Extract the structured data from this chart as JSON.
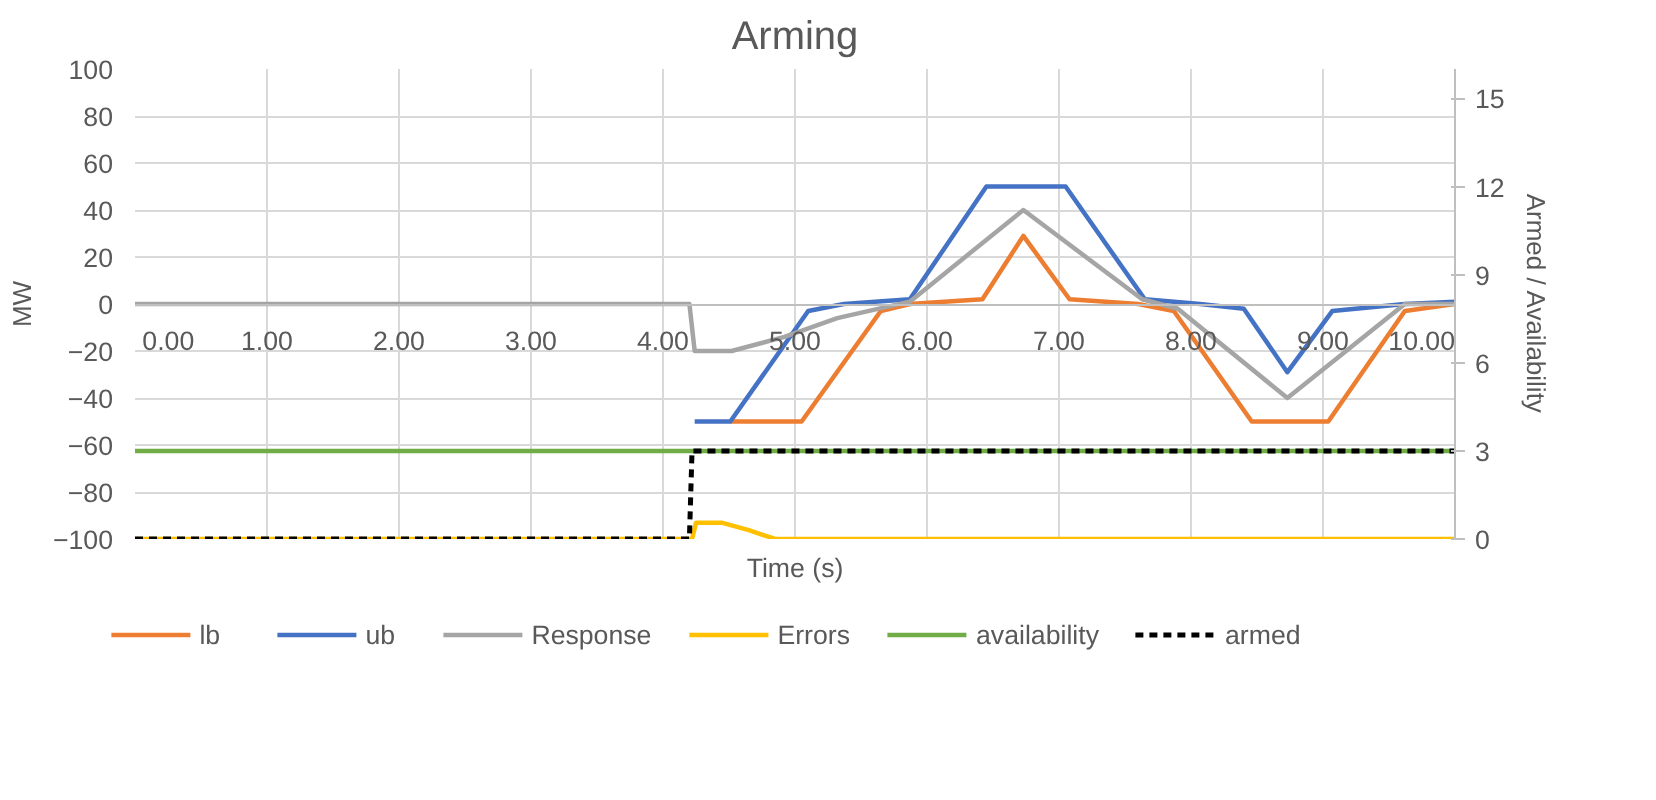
{
  "chart_data": {
    "type": "line",
    "title": "Arming",
    "xlabel": "Time (s)",
    "ylabel": "MW",
    "y2label": "Armed / Availability",
    "xlim": [
      0,
      10
    ],
    "xticks": [
      {
        "value": 0,
        "label": "0.00"
      },
      {
        "value": 1,
        "label": "1.00"
      },
      {
        "value": 2,
        "label": "2.00"
      },
      {
        "value": 3,
        "label": "3.00"
      },
      {
        "value": 4,
        "label": "4.00"
      },
      {
        "value": 5,
        "label": "5.00"
      },
      {
        "value": 6,
        "label": "6.00"
      },
      {
        "value": 7,
        "label": "7.00"
      },
      {
        "value": 8,
        "label": "8.00"
      },
      {
        "value": 9,
        "label": "9.00"
      },
      {
        "value": 10,
        "label": "10.00"
      }
    ],
    "ylim": [
      -100,
      100
    ],
    "yticks": [
      -100,
      -80,
      -60,
      -40,
      -20,
      0,
      20,
      40,
      60,
      80,
      100
    ],
    "y2lim": [
      0,
      16
    ],
    "y2ticks": [
      0,
      3,
      6,
      9,
      12,
      15
    ],
    "grid": true,
    "legend": "bottom",
    "marker": "none",
    "series": [
      {
        "name": "lb",
        "color": "#ed7d31",
        "x": [
          4.51,
          5.05,
          5.65,
          5.87,
          6.42,
          6.73,
          7.08,
          7.6,
          7.87,
          8.46,
          9.04,
          9.62,
          10
        ],
        "values": [
          -50,
          -50,
          -3,
          0,
          2,
          29,
          2,
          0,
          -3,
          -50,
          -50,
          -3,
          0
        ]
      },
      {
        "name": "ub",
        "color": "#4472c4",
        "x": [
          4.24,
          4.51,
          5.1,
          5.37,
          5.87,
          6.45,
          7.05,
          7.65,
          8.07,
          8.4,
          8.73,
          9.07,
          9.62,
          10
        ],
        "values": [
          -50,
          -50,
          -3,
          0,
          2,
          50,
          50,
          2,
          0,
          -2,
          -29,
          -3,
          0,
          1
        ]
      },
      {
        "name": "Response",
        "color": "#a5a5a5",
        "x": [
          0,
          4.2,
          4.24,
          4.52,
          4.92,
          5.32,
          5.87,
          6.73,
          7.63,
          7.9,
          8.73,
          9.62,
          10
        ],
        "values": [
          0,
          0,
          -20,
          -20,
          -14,
          -6,
          1,
          40,
          2,
          -2,
          -40,
          0,
          0
        ]
      },
      {
        "name": "Errors",
        "color": "#ffc000",
        "axis": "y2",
        "x": [
          0,
          4.22,
          4.25,
          4.45,
          4.65,
          4.85,
          10
        ],
        "values": [
          0,
          0,
          0.55,
          0.55,
          0.3,
          0,
          0
        ]
      },
      {
        "name": "availability",
        "color": "#70ad47",
        "axis": "y2",
        "x": [
          0,
          10
        ],
        "values": [
          3,
          3
        ]
      },
      {
        "name": "armed",
        "color": "#000000",
        "axis": "y2",
        "line_style": "dashed",
        "x": [
          0,
          4.2,
          4.22,
          10
        ],
        "values": [
          0,
          0,
          3,
          3
        ]
      }
    ]
  }
}
